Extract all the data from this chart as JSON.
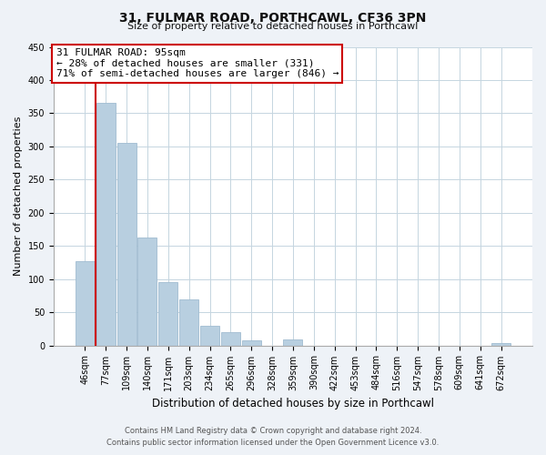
{
  "title_line1": "31, FULMAR ROAD, PORTHCAWL, CF36 3PN",
  "title_line2": "Size of property relative to detached houses in Porthcawl",
  "xlabel": "Distribution of detached houses by size in Porthcawl",
  "ylabel": "Number of detached properties",
  "bar_labels": [
    "46sqm",
    "77sqm",
    "109sqm",
    "140sqm",
    "171sqm",
    "203sqm",
    "234sqm",
    "265sqm",
    "296sqm",
    "328sqm",
    "359sqm",
    "390sqm",
    "422sqm",
    "453sqm",
    "484sqm",
    "516sqm",
    "547sqm",
    "578sqm",
    "609sqm",
    "641sqm",
    "672sqm"
  ],
  "bar_values": [
    127,
    365,
    305,
    163,
    95,
    70,
    30,
    20,
    7,
    0,
    9,
    0,
    0,
    0,
    0,
    0,
    0,
    0,
    0,
    0,
    3
  ],
  "bar_color": "#b8cfe0",
  "bar_edge_color": "#a0bcd0",
  "marker_color": "#cc0000",
  "annotation_title": "31 FULMAR ROAD: 95sqm",
  "annotation_line2": "← 28% of detached houses are smaller (331)",
  "annotation_line3": "71% of semi-detached houses are larger (846) →",
  "ylim": [
    0,
    450
  ],
  "yticks": [
    0,
    50,
    100,
    150,
    200,
    250,
    300,
    350,
    400,
    450
  ],
  "footer_line1": "Contains HM Land Registry data © Crown copyright and database right 2024.",
  "footer_line2": "Contains public sector information licensed under the Open Government Licence v3.0.",
  "bg_color": "#eef2f7",
  "plot_bg_color": "#ffffff",
  "grid_color": "#c5d5e0",
  "title_fontsize": 10,
  "subtitle_fontsize": 8,
  "ylabel_fontsize": 8,
  "xlabel_fontsize": 8.5,
  "tick_fontsize": 7,
  "footer_fontsize": 6
}
